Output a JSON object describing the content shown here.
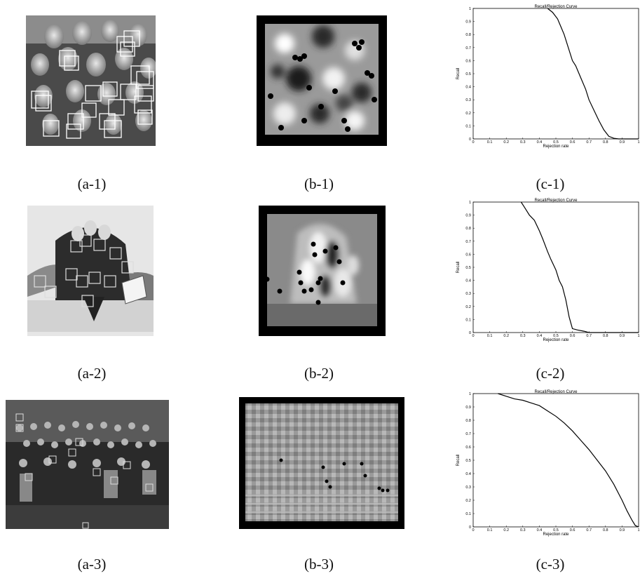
{
  "figure": {
    "rows": [
      {
        "captions": [
          "(a-1)",
          "(b-1)",
          "(c-1)"
        ],
        "photo": {
          "description_icon": "photo-children-group"
        },
        "saliency": {
          "description_icon": "saliency-map"
        }
      },
      {
        "captions": [
          "(a-2)",
          "(b-2)",
          "(c-2)"
        ],
        "photo": {
          "description_icon": "photo-group-on-sofa"
        },
        "saliency": {
          "description_icon": "saliency-map"
        }
      },
      {
        "captions": [
          "(a-3)",
          "(b-3)",
          "(c-3)"
        ],
        "photo": {
          "description_icon": "photo-large-group-stairs"
        },
        "saliency": {
          "description_icon": "saliency-map"
        }
      }
    ]
  },
  "chart_data": [
    {
      "type": "line",
      "title": "Recall/Rejection Curve",
      "xlabel": "Rejection rate",
      "ylabel": "Recall",
      "xlim": [
        0,
        1
      ],
      "ylim": [
        0,
        1
      ],
      "xticks": [
        "0",
        "0.1",
        "0.2",
        "0.3",
        "0.4",
        "0.5",
        "0.6",
        "0.7",
        "0.8",
        "0.9",
        "1"
      ],
      "yticks": [
        "0",
        "0.1",
        "0.2",
        "0.3",
        "0.4",
        "0.5",
        "0.6",
        "0.7",
        "0.8",
        "0.9",
        "1"
      ],
      "grid": false,
      "series": [
        {
          "x": [
            0.45,
            0.48,
            0.51,
            0.53,
            0.55,
            0.57,
            0.6,
            0.62,
            0.65,
            0.68,
            0.7,
            0.73,
            0.76,
            0.79,
            0.82,
            0.85,
            0.88,
            1.0
          ],
          "y": [
            1.0,
            0.97,
            0.92,
            0.86,
            0.8,
            0.72,
            0.6,
            0.56,
            0.47,
            0.38,
            0.3,
            0.22,
            0.14,
            0.07,
            0.02,
            0.005,
            0.0,
            0.0
          ]
        }
      ]
    },
    {
      "type": "line",
      "title": "Recall/Rejection Curve",
      "xlabel": "Rejection rate",
      "ylabel": "Recall",
      "xlim": [
        0,
        1
      ],
      "ylim": [
        0,
        1
      ],
      "xticks": [
        "0",
        "0.1",
        "0.2",
        "0.3",
        "0.4",
        "0.5",
        "0.6",
        "0.7",
        "0.8",
        "0.9",
        "1"
      ],
      "yticks": [
        "0",
        "0.1",
        "0.2",
        "0.3",
        "0.4",
        "0.5",
        "0.6",
        "0.7",
        "0.8",
        "0.9",
        "1"
      ],
      "grid": false,
      "series": [
        {
          "x": [
            0.29,
            0.31,
            0.34,
            0.37,
            0.4,
            0.42,
            0.45,
            0.47,
            0.5,
            0.52,
            0.54,
            0.56,
            0.58,
            0.6,
            0.63,
            0.67,
            0.7,
            1.0
          ],
          "y": [
            1.0,
            0.96,
            0.9,
            0.86,
            0.78,
            0.72,
            0.62,
            0.56,
            0.48,
            0.4,
            0.35,
            0.25,
            0.12,
            0.03,
            0.02,
            0.01,
            0.0,
            0.0
          ]
        }
      ]
    },
    {
      "type": "line",
      "title": "Recall/Rejection Curve",
      "xlabel": "Rejection rate",
      "ylabel": "Recall",
      "xlim": [
        0,
        1
      ],
      "ylim": [
        0,
        1
      ],
      "xticks": [
        "0",
        "0.1",
        "0.2",
        "0.3",
        "0.4",
        "0.5",
        "0.6",
        "0.7",
        "0.8",
        "0.9",
        "1"
      ],
      "yticks": [
        "0",
        "0.1",
        "0.2",
        "0.3",
        "0.4",
        "0.5",
        "0.6",
        "0.7",
        "0.8",
        "0.9",
        "1"
      ],
      "grid": false,
      "series": [
        {
          "x": [
            0.15,
            0.2,
            0.25,
            0.3,
            0.35,
            0.4,
            0.45,
            0.5,
            0.55,
            0.6,
            0.65,
            0.7,
            0.75,
            0.8,
            0.85,
            0.9,
            0.93,
            0.96,
            0.98,
            1.0
          ],
          "y": [
            1.0,
            0.98,
            0.96,
            0.95,
            0.93,
            0.91,
            0.87,
            0.83,
            0.78,
            0.72,
            0.65,
            0.58,
            0.5,
            0.42,
            0.32,
            0.2,
            0.12,
            0.05,
            0.01,
            0.0
          ]
        }
      ]
    }
  ]
}
